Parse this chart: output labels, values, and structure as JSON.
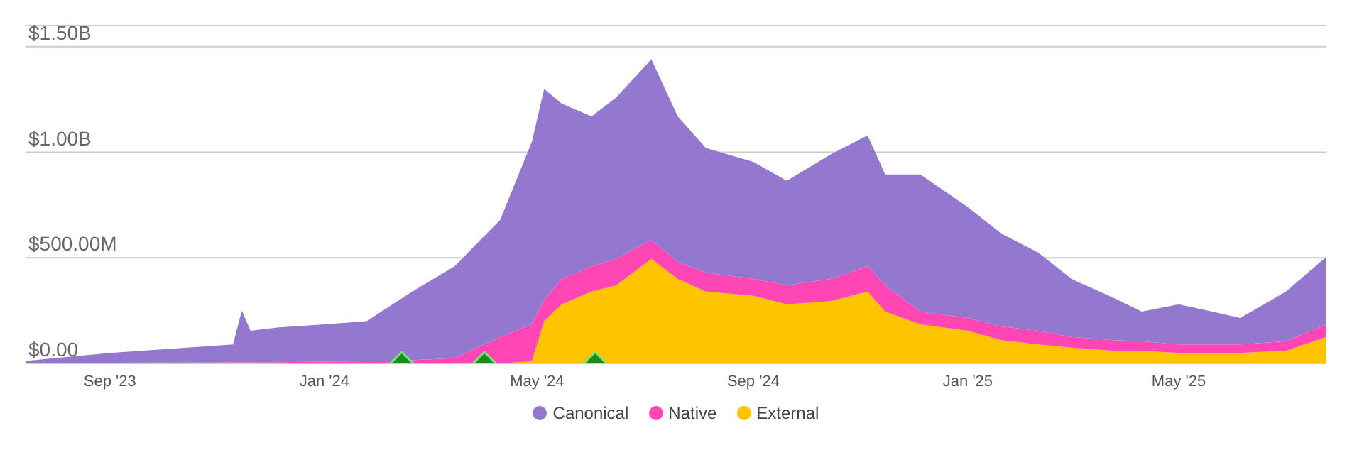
{
  "chart_data": {
    "type": "area",
    "stacked": true,
    "legend": "bottom",
    "grid": "y",
    "x": [
      "2023-07-15",
      "2023-09-01",
      "2023-10-15",
      "2023-11-10",
      "2023-11-15",
      "2023-11-20",
      "2023-12-05",
      "2024-01-01",
      "2024-01-25",
      "2024-02-20",
      "2024-03-15",
      "2024-04-10",
      "2024-04-28",
      "2024-05-05",
      "2024-05-15",
      "2024-06-01",
      "2024-06-15",
      "2024-07-05",
      "2024-07-20",
      "2024-08-05",
      "2024-09-01",
      "2024-09-20",
      "2024-10-15",
      "2024-11-05",
      "2024-11-15",
      "2024-12-05",
      "2025-01-01",
      "2025-01-20",
      "2025-02-10",
      "2025-03-01",
      "2025-03-25",
      "2025-04-10",
      "2025-05-01",
      "2025-05-20",
      "2025-06-05",
      "2025-07-01",
      "2025-07-24"
    ],
    "xlim": [
      "2023-07-15",
      "2025-07-24"
    ],
    "xticks": [
      {
        "value": "2023-09-01",
        "label": "Sep '23"
      },
      {
        "value": "2024-01-01",
        "label": "Jan '24"
      },
      {
        "value": "2024-05-01",
        "label": "May '24"
      },
      {
        "value": "2024-09-01",
        "label": "Sep '24"
      },
      {
        "value": "2025-01-01",
        "label": "Jan '25"
      },
      {
        "value": "2025-05-01",
        "label": "May '25"
      }
    ],
    "ylim": [
      0,
      1600000000
    ],
    "yticks": [
      {
        "value": 0,
        "label": "$0.00"
      },
      {
        "value": 500000000,
        "label": "$500.00M"
      },
      {
        "value": 1000000000,
        "label": "$1.00B"
      },
      {
        "value": 1500000000,
        "label": "$1.50B"
      }
    ],
    "series": [
      {
        "name": "External",
        "color": "#ffc400",
        "values": [
          0,
          0,
          0,
          0,
          0,
          0,
          0,
          0,
          0,
          0,
          0,
          0,
          10000000,
          200000000,
          280000000,
          340000000,
          370000000,
          495000000,
          400000000,
          340000000,
          320000000,
          280000000,
          295000000,
          340000000,
          245000000,
          185000000,
          155000000,
          110000000,
          90000000,
          75000000,
          60000000,
          60000000,
          50000000,
          50000000,
          50000000,
          60000000,
          125000000
        ]
      },
      {
        "name": "Native",
        "color": "#ff46b4",
        "values": [
          1000000,
          3000000,
          4000000,
          5000000,
          5000000,
          5000000,
          6000000,
          8000000,
          10000000,
          15000000,
          25000000,
          125000000,
          175000000,
          100000000,
          120000000,
          120000000,
          125000000,
          90000000,
          80000000,
          90000000,
          80000000,
          90000000,
          105000000,
          120000000,
          125000000,
          60000000,
          60000000,
          65000000,
          65000000,
          50000000,
          50000000,
          45000000,
          40000000,
          40000000,
          40000000,
          45000000,
          60000000
        ]
      },
      {
        "name": "Canonical",
        "color": "#9478d0",
        "values": [
          11000000,
          47000000,
          71000000,
          85000000,
          245000000,
          150000000,
          164000000,
          177000000,
          190000000,
          325000000,
          435000000,
          555000000,
          865000000,
          1000000000,
          830000000,
          710000000,
          765000000,
          855000000,
          690000000,
          590000000,
          555000000,
          495000000,
          590000000,
          620000000,
          525000000,
          650000000,
          525000000,
          440000000,
          370000000,
          275000000,
          200000000,
          140000000,
          190000000,
          155000000,
          125000000,
          235000000,
          320000000
        ]
      },
      {
        "type": "scatter",
        "color": "#1f8a1f",
        "marker": "diamond",
        "x": [
          "2024-02-14",
          "2024-04-01",
          "2024-06-03"
        ],
        "values": [
          0,
          0,
          0
        ]
      }
    ]
  }
}
